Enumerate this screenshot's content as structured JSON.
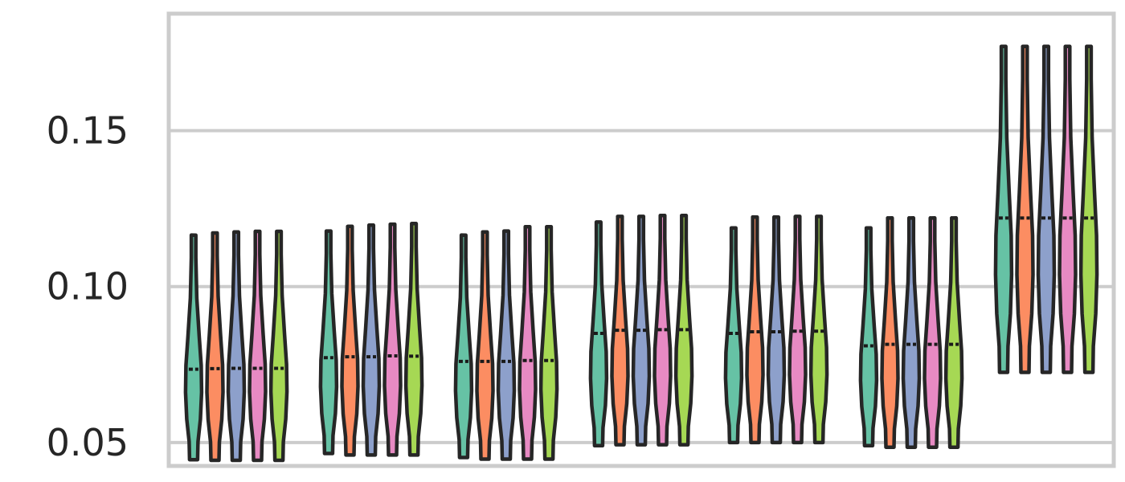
{
  "chart_data": {
    "type": "violin",
    "title": "",
    "xlabel": "",
    "ylabel": "",
    "ylim": [
      0.0425,
      0.1875
    ],
    "yticks": [
      0.05,
      0.1,
      0.15
    ],
    "ytick_labels": [
      "0.05",
      "0.10",
      "0.15"
    ],
    "grid": "horizontal",
    "legend": "none",
    "series_colors": [
      "#66c2a5",
      "#fc8d62",
      "#8da0cb",
      "#e78ac3",
      "#a6d854"
    ],
    "groups": [
      {
        "violins": [
          {
            "min": 0.0445,
            "max": 0.1165,
            "median": 0.0735
          },
          {
            "min": 0.0443,
            "max": 0.1172,
            "median": 0.0737
          },
          {
            "min": 0.0443,
            "max": 0.1175,
            "median": 0.0738
          },
          {
            "min": 0.0443,
            "max": 0.1177,
            "median": 0.0738
          },
          {
            "min": 0.0443,
            "max": 0.1177,
            "median": 0.0738
          }
        ]
      },
      {
        "violins": [
          {
            "min": 0.0465,
            "max": 0.1178,
            "median": 0.0772
          },
          {
            "min": 0.046,
            "max": 0.1193,
            "median": 0.0775
          },
          {
            "min": 0.046,
            "max": 0.1197,
            "median": 0.0775
          },
          {
            "min": 0.046,
            "max": 0.12,
            "median": 0.0778
          },
          {
            "min": 0.046,
            "max": 0.1202,
            "median": 0.0777
          }
        ]
      },
      {
        "violins": [
          {
            "min": 0.0452,
            "max": 0.1165,
            "median": 0.076
          },
          {
            "min": 0.0447,
            "max": 0.1175,
            "median": 0.076
          },
          {
            "min": 0.0447,
            "max": 0.1178,
            "median": 0.076
          },
          {
            "min": 0.0447,
            "max": 0.1192,
            "median": 0.0763
          },
          {
            "min": 0.0447,
            "max": 0.1192,
            "median": 0.0763
          }
        ]
      },
      {
        "violins": [
          {
            "min": 0.049,
            "max": 0.1207,
            "median": 0.085
          },
          {
            "min": 0.0493,
            "max": 0.1225,
            "median": 0.086
          },
          {
            "min": 0.0493,
            "max": 0.1225,
            "median": 0.086
          },
          {
            "min": 0.0493,
            "max": 0.1228,
            "median": 0.0862
          },
          {
            "min": 0.0493,
            "max": 0.1228,
            "median": 0.0862
          }
        ]
      },
      {
        "violins": [
          {
            "min": 0.05,
            "max": 0.1188,
            "median": 0.085
          },
          {
            "min": 0.05,
            "max": 0.1223,
            "median": 0.0855
          },
          {
            "min": 0.05,
            "max": 0.1223,
            "median": 0.0855
          },
          {
            "min": 0.05,
            "max": 0.1225,
            "median": 0.0857
          },
          {
            "min": 0.05,
            "max": 0.1225,
            "median": 0.0857
          }
        ]
      },
      {
        "violins": [
          {
            "min": 0.049,
            "max": 0.1188,
            "median": 0.081
          },
          {
            "min": 0.0485,
            "max": 0.122,
            "median": 0.0815
          },
          {
            "min": 0.0485,
            "max": 0.122,
            "median": 0.0815
          },
          {
            "min": 0.0485,
            "max": 0.122,
            "median": 0.0815
          },
          {
            "min": 0.0485,
            "max": 0.122,
            "median": 0.0815
          }
        ]
      },
      {
        "violins": [
          {
            "min": 0.0725,
            "max": 0.177,
            "median": 0.122
          },
          {
            "min": 0.0725,
            "max": 0.177,
            "median": 0.122
          },
          {
            "min": 0.0725,
            "max": 0.177,
            "median": 0.122
          },
          {
            "min": 0.0725,
            "max": 0.177,
            "median": 0.122
          },
          {
            "min": 0.0725,
            "max": 0.177,
            "median": 0.122
          }
        ]
      }
    ]
  }
}
